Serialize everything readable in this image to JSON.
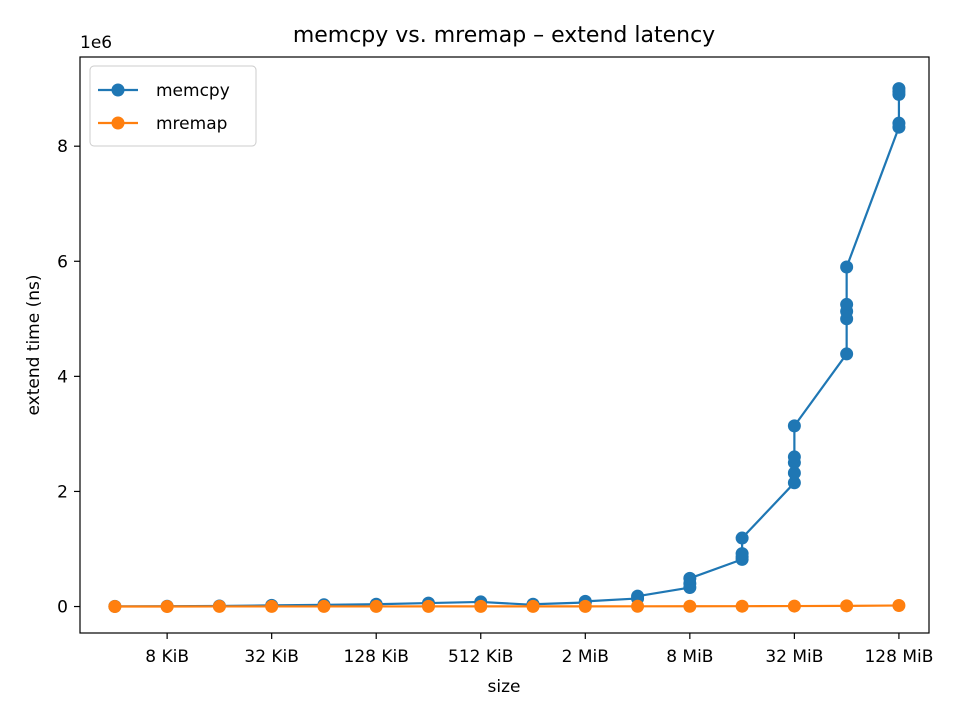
{
  "chart_data": {
    "type": "line",
    "title": "memcpy vs. mremap – extend latency",
    "xlabel": "size",
    "ylabel": "extend time (ns)",
    "x_scale": "log2",
    "y_offset_label": "1e6",
    "x_ticks": [
      {
        "value": 8192,
        "label": "8 KiB"
      },
      {
        "value": 32768,
        "label": "32 KiB"
      },
      {
        "value": 131072,
        "label": "128 KiB"
      },
      {
        "value": 524288,
        "label": "512 KiB"
      },
      {
        "value": 2097152,
        "label": "2 MiB"
      },
      {
        "value": 8388608,
        "label": "8 MiB"
      },
      {
        "value": 33554432,
        "label": "32 MiB"
      },
      {
        "value": 134217728,
        "label": "128 MiB"
      }
    ],
    "y_ticks": [
      {
        "value": 0,
        "label": "0"
      },
      {
        "value": 2000000,
        "label": "2"
      },
      {
        "value": 4000000,
        "label": "4"
      },
      {
        "value": 6000000,
        "label": "6"
      },
      {
        "value": 8000000,
        "label": "8"
      }
    ],
    "xlim": [
      2580,
      200000000
    ],
    "ylim": [
      -460000,
      9550000
    ],
    "legend_position": "upper-left",
    "grid": false,
    "series": [
      {
        "name": "memcpy",
        "color": "#1f77b4",
        "points": [
          [
            4096,
            3000
          ],
          [
            8192,
            6000
          ],
          [
            16384,
            10000
          ],
          [
            32768,
            20000
          ],
          [
            65536,
            30000
          ],
          [
            131072,
            40000
          ],
          [
            262144,
            60000
          ],
          [
            524288,
            80000
          ],
          [
            1048576,
            30000
          ],
          [
            1048576,
            40000
          ],
          [
            2097152,
            70000
          ],
          [
            2097152,
            90000
          ],
          [
            4194304,
            140000
          ],
          [
            4194304,
            180000
          ],
          [
            8388608,
            330000
          ],
          [
            8388608,
            400000
          ],
          [
            8388608,
            490000
          ],
          [
            16777216,
            820000
          ],
          [
            16777216,
            860000
          ],
          [
            16777216,
            920000
          ],
          [
            16777216,
            1190000
          ],
          [
            33554432,
            2150000
          ],
          [
            33554432,
            2320000
          ],
          [
            33554432,
            2500000
          ],
          [
            33554432,
            2600000
          ],
          [
            33554432,
            3140000
          ],
          [
            67108864,
            4390000
          ],
          [
            67108864,
            5000000
          ],
          [
            67108864,
            5130000
          ],
          [
            67108864,
            5250000
          ],
          [
            67108864,
            5900000
          ],
          [
            134217728,
            8330000
          ],
          [
            134217728,
            8400000
          ],
          [
            134217728,
            8900000
          ],
          [
            134217728,
            8950000
          ],
          [
            134217728,
            9000000
          ]
        ]
      },
      {
        "name": "mremap",
        "color": "#ff7f0e",
        "points": [
          [
            4096,
            1000
          ],
          [
            8192,
            1000
          ],
          [
            16384,
            2000
          ],
          [
            32768,
            2000
          ],
          [
            65536,
            2000
          ],
          [
            131072,
            2000
          ],
          [
            262144,
            3000
          ],
          [
            524288,
            3000
          ],
          [
            1048576,
            3000
          ],
          [
            2097152,
            3000
          ],
          [
            4194304,
            4000
          ],
          [
            8388608,
            5000
          ],
          [
            16777216,
            6000
          ],
          [
            33554432,
            8000
          ],
          [
            67108864,
            12000
          ],
          [
            134217728,
            18000
          ]
        ]
      }
    ]
  }
}
